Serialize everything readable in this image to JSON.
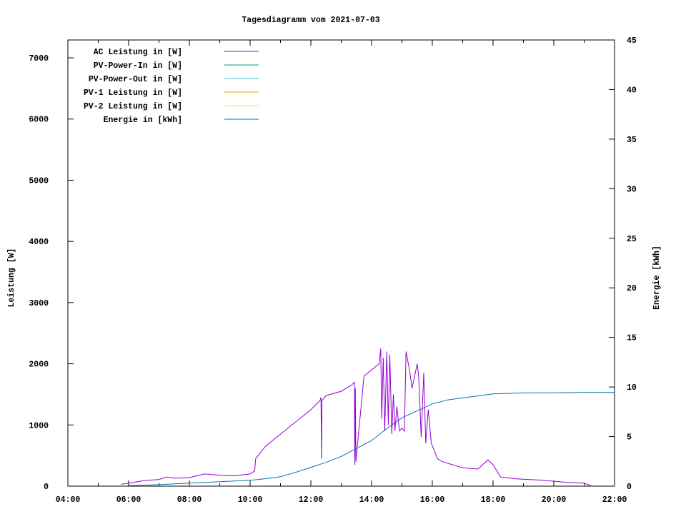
{
  "chart_data": {
    "type": "line",
    "title": "Tagesdiagramm vom 2021-07-03",
    "ylabel": "Leistung [W]",
    "y2label": "Energie [kWh]",
    "xlim": [
      "04:00",
      "22:00"
    ],
    "ylim": [
      0,
      7292
    ],
    "y2lim": [
      0,
      45
    ],
    "xticks": [
      "04:00",
      "06:00",
      "08:00",
      "10:00",
      "12:00",
      "14:00",
      "16:00",
      "18:00",
      "20:00",
      "22:00"
    ],
    "yticks": [
      0,
      1000,
      2000,
      3000,
      4000,
      5000,
      6000,
      7000
    ],
    "y2ticks": [
      0,
      5,
      10,
      15,
      20,
      25,
      30,
      35,
      40,
      45
    ],
    "grid": false,
    "legend_position": "top-left",
    "series": [
      {
        "name": "AC Leistung in [W]",
        "color": "#9400d3",
        "axis": "y",
        "x": [
          "05:45",
          "06:00",
          "06:30",
          "07:00",
          "07:15",
          "07:30",
          "08:00",
          "08:30",
          "09:00",
          "09:30",
          "10:00",
          "10:09",
          "10:11",
          "10:30",
          "11:00",
          "11:30",
          "12:00",
          "12:18",
          "12:20",
          "12:21",
          "12:22",
          "12:30",
          "13:00",
          "13:20",
          "13:26",
          "13:27",
          "13:28",
          "13:29",
          "13:45",
          "14:00",
          "14:15",
          "14:18",
          "14:20",
          "14:23",
          "14:26",
          "14:30",
          "14:33",
          "14:36",
          "14:40",
          "14:43",
          "14:46",
          "14:50",
          "14:55",
          "15:00",
          "15:05",
          "15:08",
          "15:15",
          "15:20",
          "15:30",
          "15:33",
          "15:38",
          "15:43",
          "15:47",
          "15:52",
          "15:58",
          "16:03",
          "16:10",
          "16:20",
          "16:40",
          "17:00",
          "17:30",
          "17:50",
          "18:00",
          "18:15",
          "18:45",
          "19:30",
          "20:00",
          "20:30",
          "21:00",
          "21:15"
        ],
        "values": [
          30,
          50,
          90,
          110,
          150,
          130,
          140,
          200,
          180,
          170,
          200,
          250,
          450,
          650,
          850,
          1050,
          1250,
          1400,
          1450,
          450,
          1400,
          1480,
          1550,
          1650,
          1700,
          350,
          1600,
          400,
          1800,
          1900,
          2000,
          2250,
          1100,
          2100,
          900,
          2200,
          1000,
          2150,
          850,
          1500,
          900,
          1300,
          900,
          950,
          900,
          2200,
          1900,
          1600,
          2000,
          1800,
          800,
          1850,
          700,
          1250,
          700,
          600,
          450,
          400,
          350,
          300,
          280,
          430,
          350,
          150,
          120,
          100,
          80,
          60,
          50,
          0
        ]
      },
      {
        "name": "PV-Power-In in [W]",
        "color": "#009e73",
        "axis": "y",
        "x": [],
        "values": []
      },
      {
        "name": "PV-Power-Out in [W]",
        "color": "#56b4e9",
        "axis": "y",
        "x": [],
        "values": []
      },
      {
        "name": "PV-1 Leistung in [W]",
        "color": "#e69f00",
        "axis": "y",
        "x": [],
        "values": []
      },
      {
        "name": "PV-2 Leistung in [W]",
        "color": "#f0e442",
        "axis": "y",
        "x": [],
        "values": []
      },
      {
        "name": "Energie in [kWh]",
        "color": "#0072b2",
        "axis": "y2",
        "x": [
          "06:00",
          "07:00",
          "08:00",
          "09:00",
          "10:00",
          "10:30",
          "11:00",
          "11:30",
          "12:00",
          "12:30",
          "13:00",
          "13:30",
          "14:00",
          "14:30",
          "15:00",
          "15:30",
          "16:00",
          "16:30",
          "17:00",
          "17:30",
          "18:00",
          "19:00",
          "20:00",
          "21:00",
          "22:00"
        ],
        "values": [
          0.05,
          0.15,
          0.3,
          0.45,
          0.6,
          0.75,
          0.95,
          1.4,
          1.9,
          2.4,
          3.0,
          3.8,
          4.6,
          5.8,
          6.9,
          7.6,
          8.3,
          8.7,
          8.9,
          9.1,
          9.3,
          9.4,
          9.42,
          9.45,
          9.45
        ]
      }
    ]
  }
}
